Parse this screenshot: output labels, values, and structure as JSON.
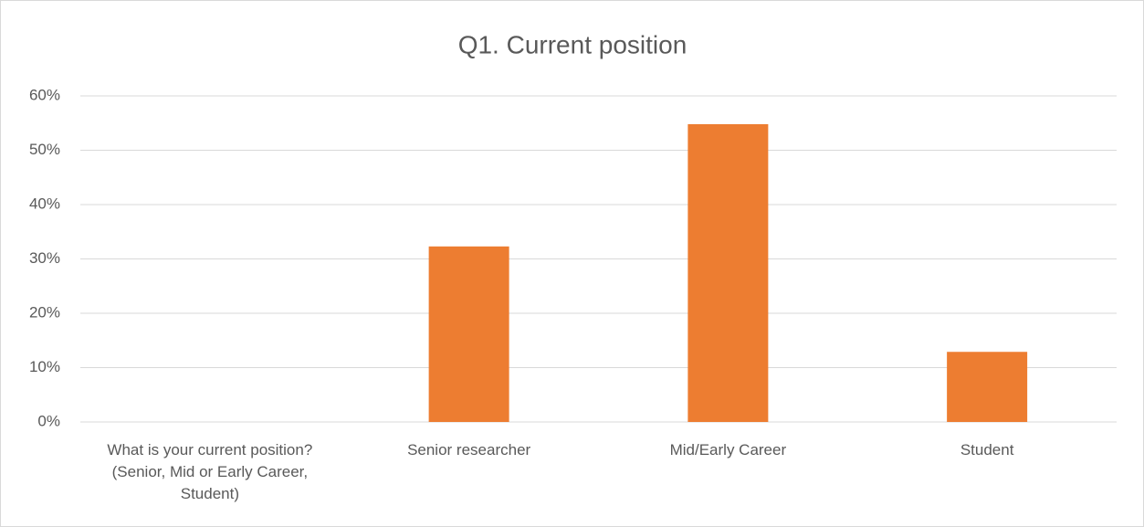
{
  "chart_data": {
    "type": "bar",
    "title": "Q1. Current position",
    "categories": [
      "What is your current position? (Senior, Mid or Early Career, Student)",
      "Senior researcher",
      "Mid/Early Career",
      "Student"
    ],
    "values": [
      null,
      32.3,
      54.8,
      12.9
    ],
    "color": "#ed7d31",
    "ylim": [
      0,
      60
    ],
    "yticks": [
      {
        "value": 0,
        "label": "0%"
      },
      {
        "value": 10,
        "label": "10%"
      },
      {
        "value": 20,
        "label": "20%"
      },
      {
        "value": 30,
        "label": "30%"
      },
      {
        "value": 40,
        "label": "40%"
      },
      {
        "value": 50,
        "label": "50%"
      },
      {
        "value": 60,
        "label": "60%"
      }
    ],
    "grid": true
  }
}
